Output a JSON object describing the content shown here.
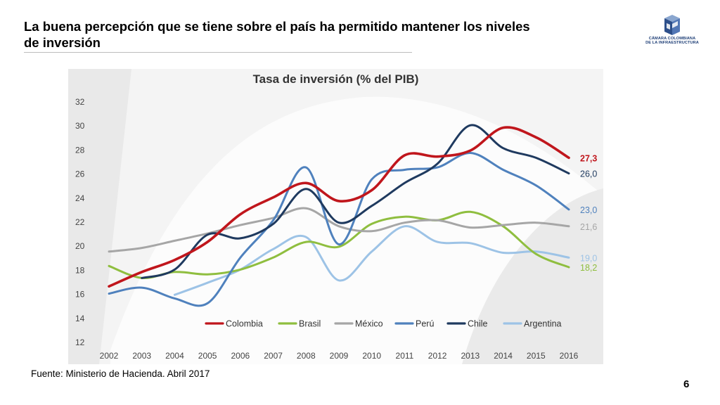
{
  "slide": {
    "title": "La buena percepción que se tiene sobre el país ha permitido mantener los niveles de inversión",
    "source": "Fuente: Ministerio de Hacienda. Abril 2017",
    "page_number": "6",
    "logo": {
      "line1": "CÁMARA COLOMBIANA",
      "line2": "DE LA INFRAESTRUCTURA",
      "icon": "cci-cube-icon"
    }
  },
  "chart_data": {
    "type": "line",
    "title": "Tasa de inversión (% del PIB)",
    "xlabel": "",
    "ylabel": "",
    "x": [
      "2002",
      "2003",
      "2004",
      "2005",
      "2006",
      "2007",
      "2008",
      "2009",
      "2010",
      "2011",
      "2012",
      "2013",
      "2014",
      "2015",
      "2016"
    ],
    "ylim": [
      12,
      32
    ],
    "yticks": [
      "12",
      "14",
      "16",
      "18",
      "20",
      "22",
      "24",
      "26",
      "28",
      "30",
      "32"
    ],
    "grid": false,
    "legend_position": "bottom",
    "series": [
      {
        "name": "Colombia",
        "color": "#c0161c",
        "end_label": "27,3",
        "bold_label": true,
        "values": [
          16.6,
          17.8,
          18.8,
          20.3,
          22.6,
          24.0,
          25.2,
          23.7,
          24.6,
          27.5,
          27.4,
          27.9,
          29.8,
          29.0,
          27.3
        ]
      },
      {
        "name": "Brasil",
        "color": "#8fbe3f",
        "end_label": "18,2",
        "values": [
          18.3,
          17.3,
          17.8,
          17.6,
          18.0,
          19.0,
          20.3,
          19.9,
          21.8,
          22.4,
          22.1,
          22.8,
          21.6,
          19.3,
          18.2
        ]
      },
      {
        "name": "México",
        "color": "#a6a6a6",
        "end_label": "21,6",
        "values": [
          19.5,
          19.8,
          20.4,
          21.0,
          21.7,
          22.3,
          23.1,
          21.6,
          21.2,
          21.9,
          22.1,
          21.5,
          21.7,
          21.9,
          21.6
        ]
      },
      {
        "name": "Perú",
        "color": "#4f81bd",
        "end_label": "23,0",
        "values": [
          16.0,
          16.5,
          15.6,
          15.2,
          19.0,
          22.1,
          26.5,
          20.1,
          25.5,
          26.3,
          26.5,
          27.7,
          26.3,
          25.0,
          23.0
        ]
      },
      {
        "name": "Chile",
        "color": "#1f3a5f",
        "end_label": "26,0",
        "values": [
          null,
          17.3,
          18.0,
          20.9,
          20.6,
          21.8,
          24.7,
          21.9,
          23.3,
          25.2,
          26.8,
          30.0,
          28.1,
          27.3,
          26.0
        ]
      },
      {
        "name": "Argentina",
        "color": "#9dc3e6",
        "end_label": "19,0",
        "values": [
          null,
          null,
          15.9,
          16.9,
          18.0,
          19.7,
          20.7,
          17.1,
          19.5,
          21.6,
          20.3,
          20.2,
          19.4,
          19.5,
          19.0
        ]
      }
    ]
  }
}
